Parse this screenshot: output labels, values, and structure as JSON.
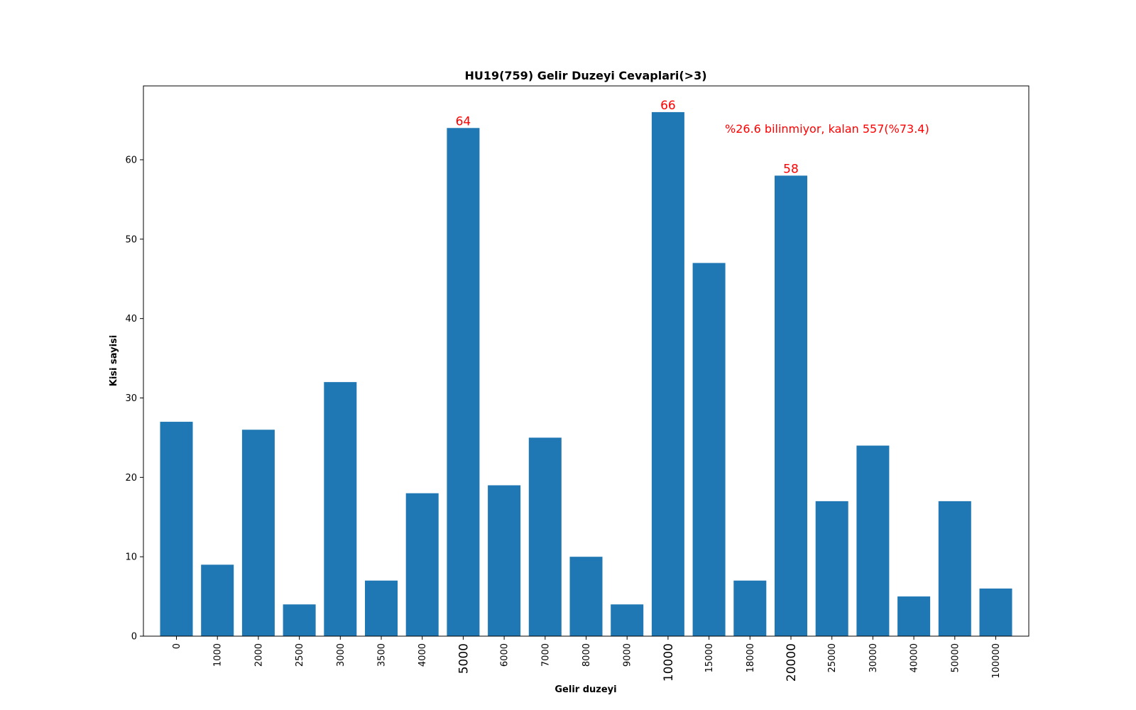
{
  "chart_data": {
    "type": "bar",
    "title": "HU19(759) Gelir Duzeyi Cevaplari(>3)",
    "xlabel": "Gelir duzeyi",
    "ylabel": "Kisi sayisi",
    "categories": [
      "0",
      "1000",
      "2000",
      "2500",
      "3000",
      "3500",
      "4000",
      "5000",
      "6000",
      "7000",
      "8000",
      "9000",
      "10000",
      "15000",
      "18000",
      "20000",
      "25000",
      "30000",
      "40000",
      "50000",
      "100000"
    ],
    "values": [
      27,
      9,
      26,
      4,
      32,
      7,
      18,
      64,
      19,
      25,
      10,
      4,
      66,
      47,
      7,
      58,
      17,
      24,
      5,
      17,
      6
    ],
    "ylim": [
      0,
      69.3
    ],
    "yticks": [
      0,
      10,
      20,
      30,
      40,
      50,
      60
    ],
    "grid": false,
    "bar_color": "#1f77b4",
    "highlight_color": "#ff0000",
    "highlighted_categories": [
      "5000",
      "10000",
      "20000"
    ],
    "data_labels": [
      {
        "category": "5000",
        "text": "64"
      },
      {
        "category": "10000",
        "text": "66"
      },
      {
        "category": "20000",
        "text": "58"
      }
    ],
    "annotation": {
      "text": "%26.6 bilinmiyor, kalan 557(%73.4)",
      "color": "#ff0000"
    }
  }
}
